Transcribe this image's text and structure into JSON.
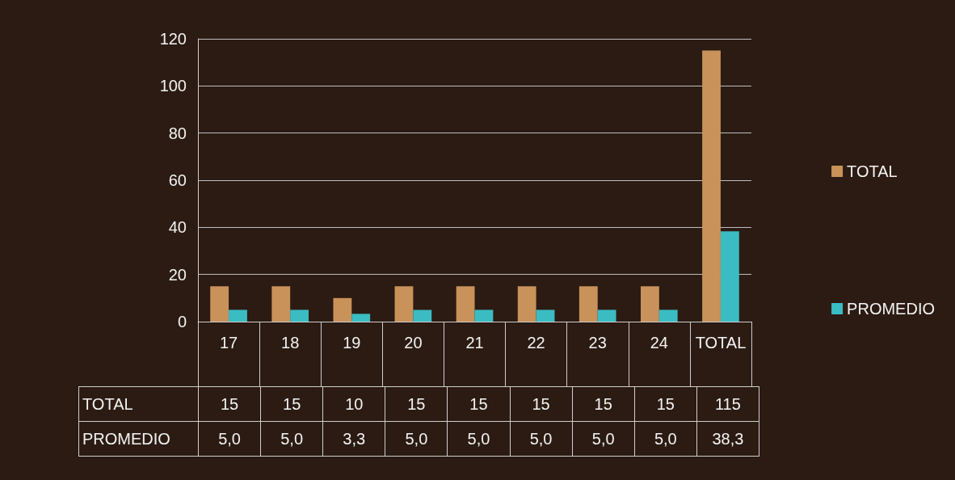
{
  "chart_data": {
    "type": "bar",
    "categories": [
      "17",
      "18",
      "19",
      "20",
      "21",
      "22",
      "23",
      "24",
      "TOTAL"
    ],
    "series": [
      {
        "name": "TOTAL",
        "color": "#c8925a",
        "values": [
          15,
          15,
          10,
          15,
          15,
          15,
          15,
          15,
          115
        ],
        "value_labels": [
          "15",
          "15",
          "10",
          "15",
          "15",
          "15",
          "15",
          "15",
          "115"
        ]
      },
      {
        "name": "PROMEDIO",
        "color": "#3bbcc2",
        "values": [
          5.0,
          5.0,
          3.3,
          5.0,
          5.0,
          5.0,
          5.0,
          5.0,
          38.3
        ],
        "value_labels": [
          "5,0",
          "5,0",
          "3,3",
          "5,0",
          "5,0",
          "5,0",
          "5,0",
          "5,0",
          "38,3"
        ]
      }
    ],
    "ylim": [
      0,
      120
    ],
    "yticks": [
      0,
      20,
      40,
      60,
      80,
      100,
      120
    ],
    "grid": "y",
    "legend": "right"
  }
}
